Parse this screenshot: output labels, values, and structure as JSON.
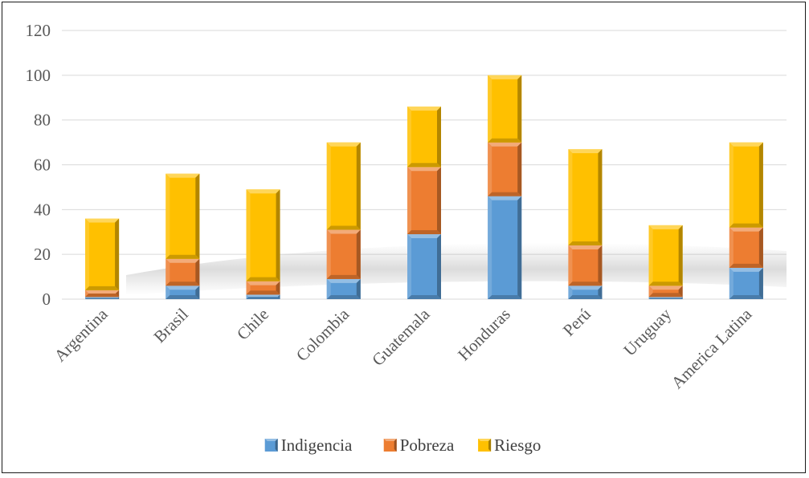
{
  "chart_data": {
    "type": "bar",
    "stacked": true,
    "title": "",
    "xlabel": "",
    "ylabel": "",
    "ylim": [
      0,
      120
    ],
    "yticks": [
      0,
      20,
      40,
      60,
      80,
      100,
      120
    ],
    "grid": true,
    "legend": "bottom",
    "categories": [
      "Argentina",
      "Brasil",
      "Chile",
      "Colombia",
      "Guatemala",
      "Honduras",
      "Perú",
      "Uruguay",
      "America Latina"
    ],
    "series": [
      {
        "name": "Indigencia",
        "color": "#5b9bd5",
        "values": [
          1,
          6,
          2,
          9,
          29,
          46,
          6,
          1,
          14
        ]
      },
      {
        "name": "Pobreza",
        "color": "#ed7d31",
        "values": [
          3,
          12,
          6,
          22,
          30,
          24,
          18,
          5,
          18
        ]
      },
      {
        "name": "Riesgo",
        "color": "#ffc000",
        "values": [
          32,
          38,
          41,
          39,
          27,
          30,
          43,
          27,
          38
        ]
      }
    ]
  }
}
